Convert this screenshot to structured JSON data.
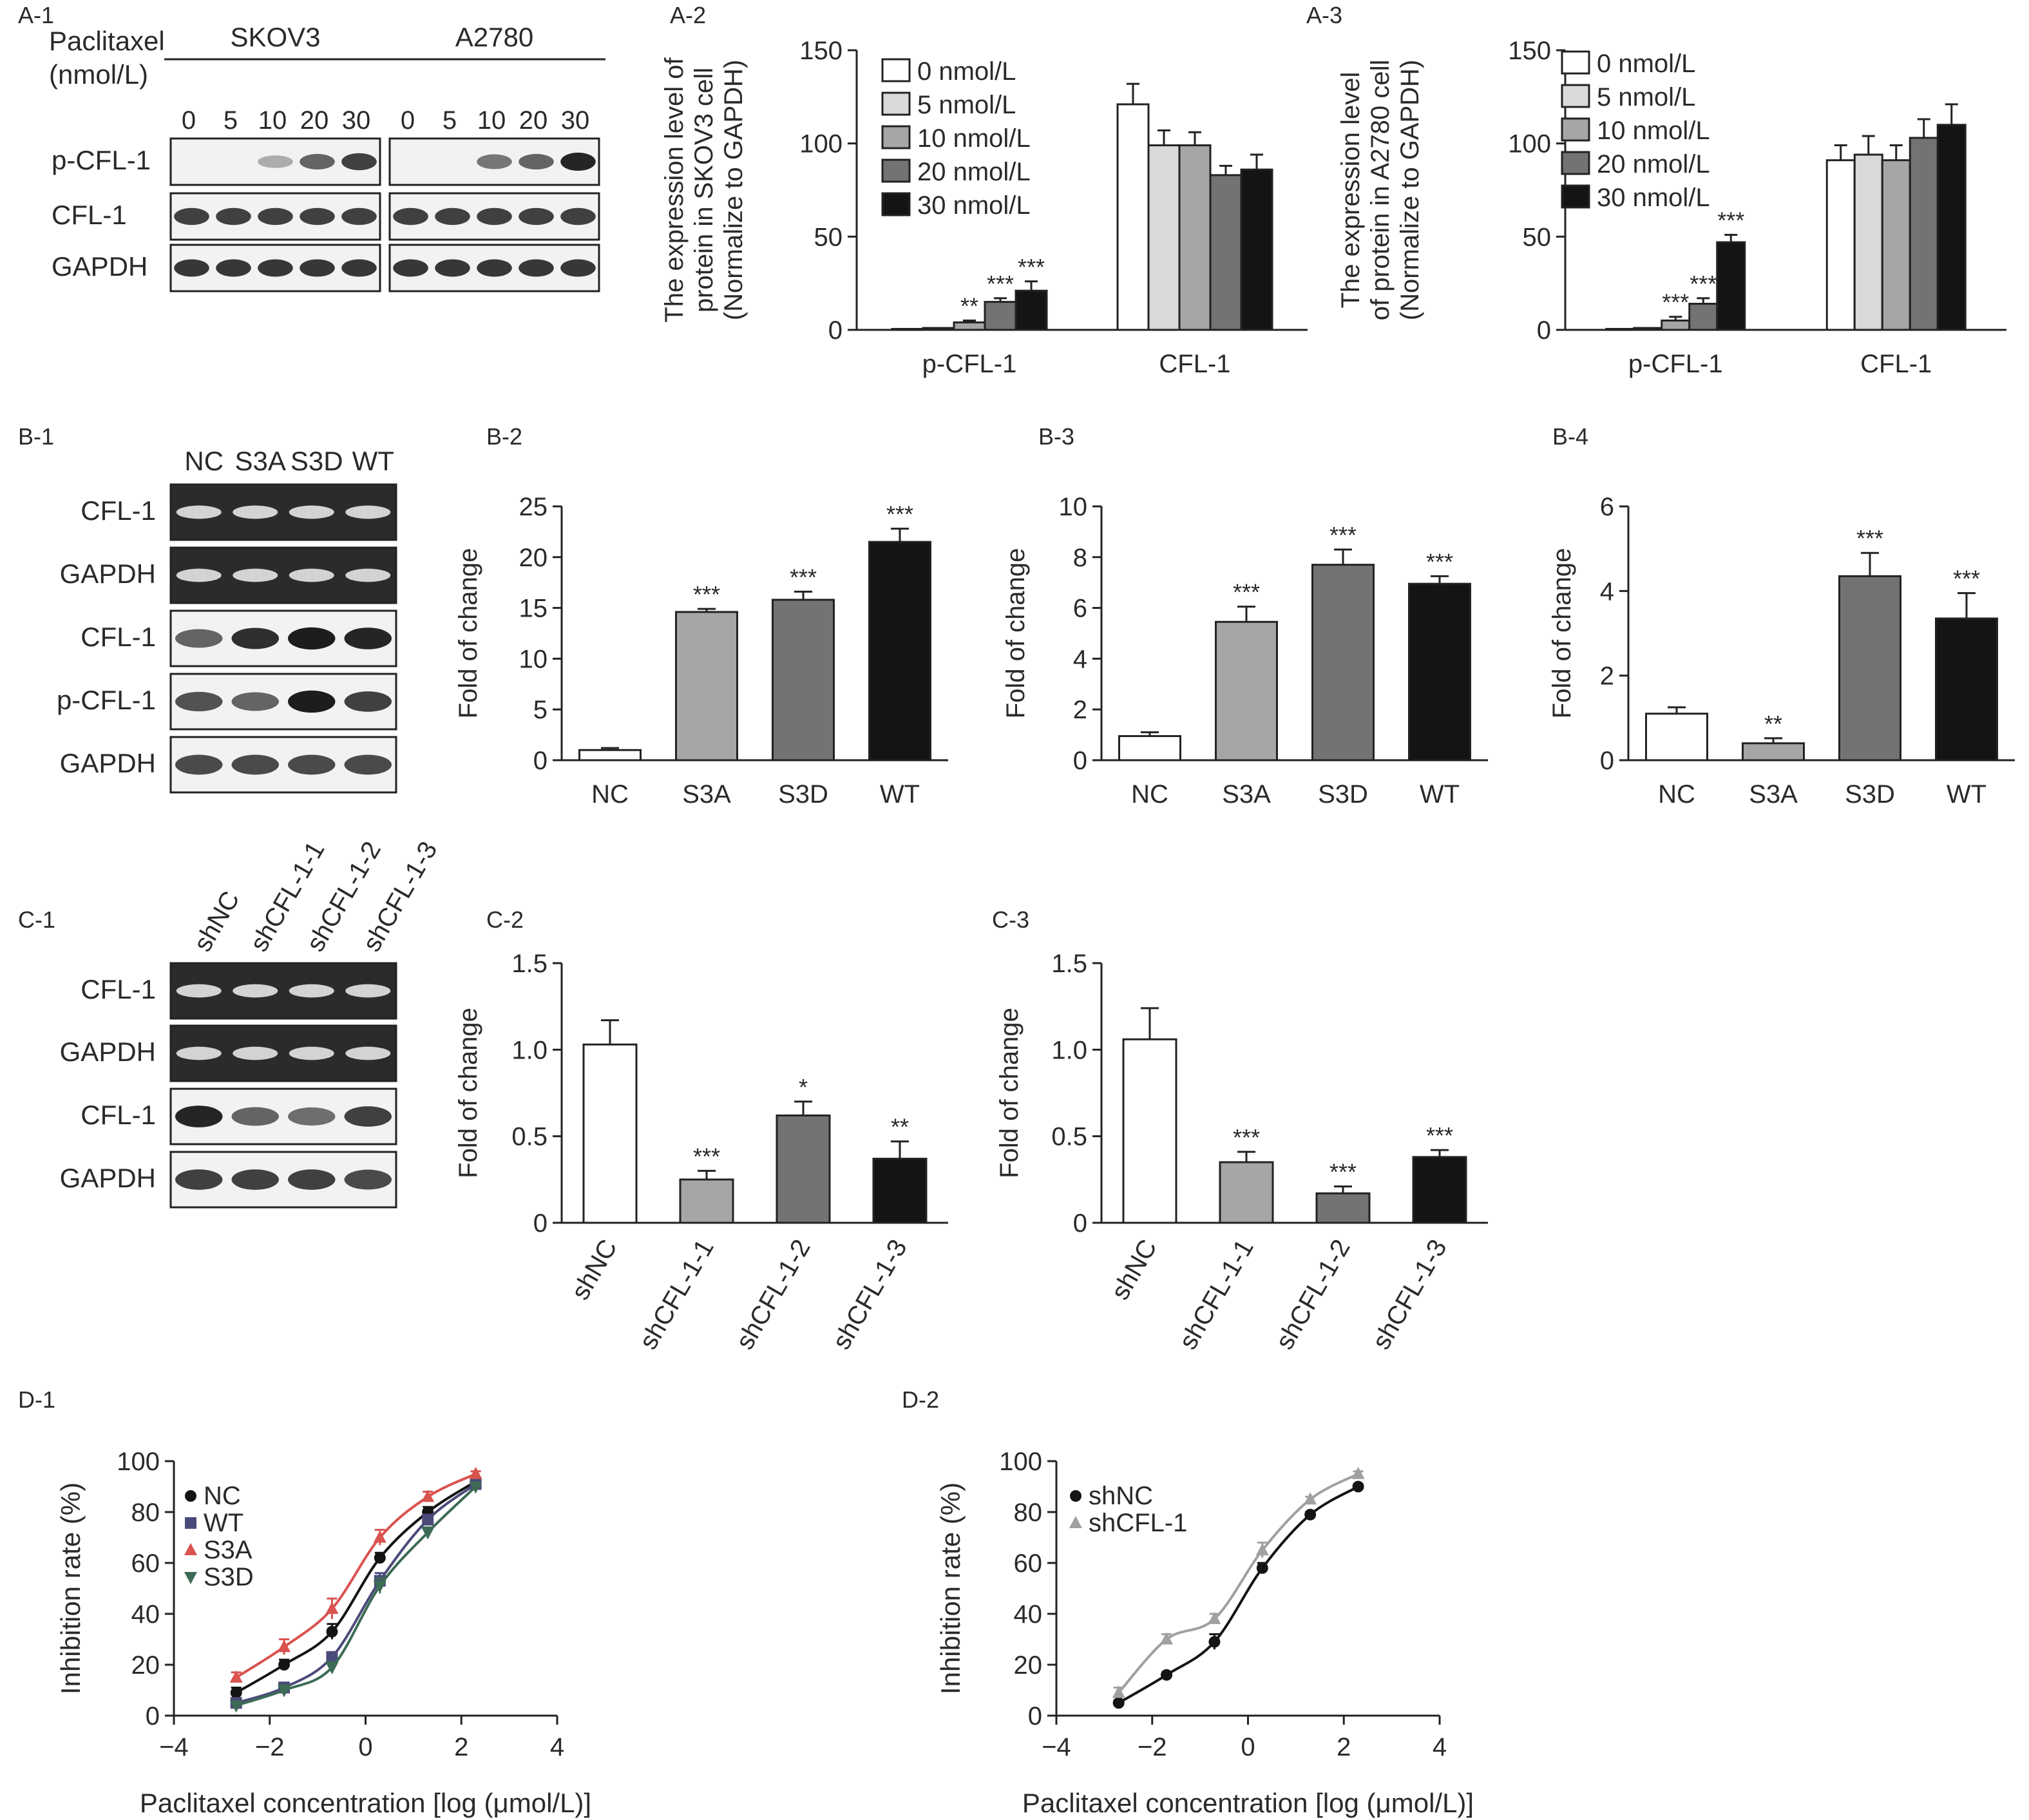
{
  "panels": {
    "A1": {
      "label": "A-1",
      "treatment_label_line1": "Paclitaxel",
      "treatment_label_line2": "(nmol/L)",
      "groups": [
        "SKOV3",
        "A2780"
      ],
      "doses": [
        "0",
        "5",
        "10",
        "20",
        "30"
      ],
      "rows": [
        "p-CFL-1",
        "CFL-1",
        "GAPDH"
      ]
    },
    "B1": {
      "label": "B-1",
      "lanes": [
        "NC",
        "S3A",
        "S3D",
        "WT"
      ],
      "rows": [
        "CFL-1",
        "GAPDH",
        "CFL-1",
        "p-CFL-1",
        "GAPDH"
      ]
    },
    "C1": {
      "label": "C-1",
      "lanes": [
        "shNC",
        "shCFL-1-1",
        "shCFL-1-2",
        "shCFL-1-3"
      ],
      "rows": [
        "CFL-1",
        "GAPDH",
        "CFL-1",
        "GAPDH"
      ]
    }
  },
  "colors": {
    "white_bar": "#ffffff",
    "light_gray": "#d9d9d9",
    "mid_gray": "#a6a6a6",
    "dark_gray": "#737373",
    "black": "#141414",
    "red": "#d9534f",
    "navy": "#4a4a7a",
    "green": "#3d6b55",
    "gray_curve": "#a0a0a0"
  },
  "chart_data": [
    {
      "id": "A-2",
      "type": "bar",
      "panel_label": "A-2",
      "ylabel_lines": [
        "The expression level of",
        "protein in SKOV3 cell",
        "(Normalize to GAPDH)"
      ],
      "ylim": [
        0,
        150
      ],
      "yticks": [
        0,
        50,
        100,
        150
      ],
      "categories": [
        "p-CFL-1",
        "CFL-1"
      ],
      "series": [
        {
          "name": "0 nmol/L",
          "values": [
            0.5,
            121
          ],
          "err": [
            0,
            11
          ],
          "sig": [
            "",
            ""
          ]
        },
        {
          "name": "5 nmol/L",
          "values": [
            1,
            99
          ],
          "err": [
            0,
            8
          ],
          "sig": [
            "",
            ""
          ]
        },
        {
          "name": "10 nmol/L",
          "values": [
            4,
            99
          ],
          "err": [
            1,
            7
          ],
          "sig": [
            "**",
            ""
          ]
        },
        {
          "name": "20 nmol/L",
          "values": [
            15,
            83
          ],
          "err": [
            2,
            5
          ],
          "sig": [
            "***",
            ""
          ]
        },
        {
          "name": "30 nmol/L",
          "values": [
            21,
            86
          ],
          "err": [
            5,
            8
          ],
          "sig": [
            "***",
            ""
          ]
        }
      ]
    },
    {
      "id": "A-3",
      "type": "bar",
      "panel_label": "A-3",
      "ylabel_lines": [
        "The expression level",
        "of protein in A2780 cell",
        "(Normalize to GAPDH)"
      ],
      "ylim": [
        0,
        150
      ],
      "yticks": [
        0,
        50,
        100,
        150
      ],
      "categories": [
        "p-CFL-1",
        "CFL-1"
      ],
      "series": [
        {
          "name": "0 nmol/L",
          "values": [
            0.5,
            91
          ],
          "err": [
            0,
            8
          ],
          "sig": [
            "",
            ""
          ]
        },
        {
          "name": "5 nmol/L",
          "values": [
            1,
            94
          ],
          "err": [
            0,
            10
          ],
          "sig": [
            "",
            ""
          ]
        },
        {
          "name": "10 nmol/L",
          "values": [
            5,
            91
          ],
          "err": [
            2,
            8
          ],
          "sig": [
            "***",
            ""
          ]
        },
        {
          "name": "20 nmol/L",
          "values": [
            14,
            103
          ],
          "err": [
            3,
            10
          ],
          "sig": [
            "***",
            ""
          ]
        },
        {
          "name": "30 nmol/L",
          "values": [
            47,
            110
          ],
          "err": [
            4,
            11
          ],
          "sig": [
            "***",
            ""
          ]
        }
      ]
    },
    {
      "id": "B-2",
      "type": "bar",
      "panel_label": "B-2",
      "ylabel": "Fold of change",
      "ylim": [
        0,
        25
      ],
      "yticks": [
        0,
        5,
        10,
        15,
        20,
        25
      ],
      "categories": [
        "NC",
        "S3A",
        "S3D",
        "WT"
      ],
      "values": [
        1,
        14.6,
        15.8,
        21.5
      ],
      "err": [
        0.2,
        0.3,
        0.8,
        1.3
      ],
      "sig": [
        "",
        "***",
        "***",
        "***"
      ]
    },
    {
      "id": "B-3",
      "type": "bar",
      "panel_label": "B-3",
      "ylabel": "Fold of change",
      "ylim": [
        0,
        10
      ],
      "yticks": [
        0,
        2,
        4,
        6,
        8,
        10
      ],
      "categories": [
        "NC",
        "S3A",
        "S3D",
        "WT"
      ],
      "values": [
        0.95,
        5.45,
        7.7,
        6.95
      ],
      "err": [
        0.15,
        0.6,
        0.6,
        0.3
      ],
      "sig": [
        "",
        "***",
        "***",
        "***"
      ]
    },
    {
      "id": "B-4",
      "type": "bar",
      "panel_label": "B-4",
      "ylabel": "Fold of change",
      "ylim": [
        0,
        6
      ],
      "yticks": [
        0,
        2,
        4,
        6
      ],
      "categories": [
        "NC",
        "S3A",
        "S3D",
        "WT"
      ],
      "values": [
        1.1,
        0.4,
        4.35,
        3.35
      ],
      "err": [
        0.15,
        0.12,
        0.55,
        0.6
      ],
      "sig": [
        "",
        "**",
        "***",
        "***"
      ]
    },
    {
      "id": "C-2",
      "type": "bar",
      "panel_label": "C-2",
      "ylabel": "Fold of change",
      "ylim": [
        0,
        1.5
      ],
      "yticks": [
        "0",
        "0.5",
        "1.0",
        "1.5"
      ],
      "categories": [
        "shNC",
        "shCFL-1-1",
        "shCFL-1-2",
        "shCFL-1-3"
      ],
      "values": [
        1.03,
        0.25,
        0.62,
        0.37
      ],
      "err": [
        0.14,
        0.05,
        0.08,
        0.1
      ],
      "sig": [
        "",
        "***",
        "*",
        "**"
      ]
    },
    {
      "id": "C-3",
      "type": "bar",
      "panel_label": "C-3",
      "ylabel": "Fold of change",
      "ylim": [
        0,
        1.5
      ],
      "yticks": [
        "0",
        "0.5",
        "1.0",
        "1.5"
      ],
      "categories": [
        "shNC",
        "shCFL-1-1",
        "shCFL-1-2",
        "shCFL-1-3"
      ],
      "values": [
        1.06,
        0.35,
        0.17,
        0.38
      ],
      "err": [
        0.18,
        0.06,
        0.04,
        0.04
      ],
      "sig": [
        "",
        "***",
        "***",
        "***"
      ]
    },
    {
      "id": "D-1",
      "type": "line",
      "panel_label": "D-1",
      "xlabel": "Paclitaxel concentration [log (μmol/L)]",
      "ylabel": "Inhibition rate (%)",
      "xlim": [
        -4,
        4
      ],
      "ylim": [
        0,
        100
      ],
      "xticks": [
        -4,
        -2,
        0,
        2,
        4
      ],
      "xtick_labels": [
        "−4",
        "−2",
        "0",
        "2",
        "4"
      ],
      "yticks": [
        0,
        20,
        40,
        60,
        80,
        100
      ],
      "x": [
        -2.7,
        -1.7,
        -0.7,
        0.3,
        1.3,
        2.3
      ],
      "series": [
        {
          "name": "NC",
          "marker": "circle",
          "color": "#141414",
          "y": [
            9,
            20,
            33,
            62,
            80,
            92
          ],
          "err": [
            2,
            2,
            3,
            2,
            2,
            1
          ]
        },
        {
          "name": "WT",
          "marker": "square",
          "color": "#4a4a7a",
          "y": [
            5,
            11,
            23,
            53,
            77,
            91
          ],
          "err": [
            1,
            2,
            2,
            3,
            2,
            1
          ]
        },
        {
          "name": "S3A",
          "marker": "triangle",
          "color": "#d9534f",
          "y": [
            15,
            27,
            42,
            70,
            86,
            95
          ],
          "err": [
            2,
            3,
            4,
            3,
            2,
            1
          ]
        },
        {
          "name": "S3D",
          "marker": "triangle-down",
          "color": "#3d6b55",
          "y": [
            4,
            10,
            19,
            51,
            72,
            90
          ],
          "err": [
            1,
            2,
            2,
            3,
            2,
            1
          ]
        }
      ]
    },
    {
      "id": "D-2",
      "type": "line",
      "panel_label": "D-2",
      "xlabel": "Paclitaxel concentration [log (μmol/L)]",
      "ylabel": "Inhibition rate (%)",
      "xlim": [
        -4,
        4
      ],
      "ylim": [
        0,
        100
      ],
      "xticks": [
        -4,
        -2,
        0,
        2,
        4
      ],
      "xtick_labels": [
        "−4",
        "−2",
        "0",
        "2",
        "4"
      ],
      "yticks": [
        0,
        20,
        40,
        60,
        80,
        100
      ],
      "x": [
        -2.7,
        -1.7,
        -0.7,
        0.3,
        1.3,
        2.3
      ],
      "series": [
        {
          "name": "shNC",
          "marker": "circle",
          "color": "#141414",
          "y": [
            5,
            16,
            29,
            58,
            79,
            90
          ],
          "err": [
            1,
            1,
            3,
            2,
            1,
            1
          ]
        },
        {
          "name": "shCFL-1",
          "marker": "triangle",
          "color": "#a0a0a0",
          "y": [
            9,
            30,
            38,
            65,
            85,
            95
          ],
          "err": [
            2,
            2,
            2,
            3,
            1,
            1
          ]
        }
      ]
    }
  ]
}
